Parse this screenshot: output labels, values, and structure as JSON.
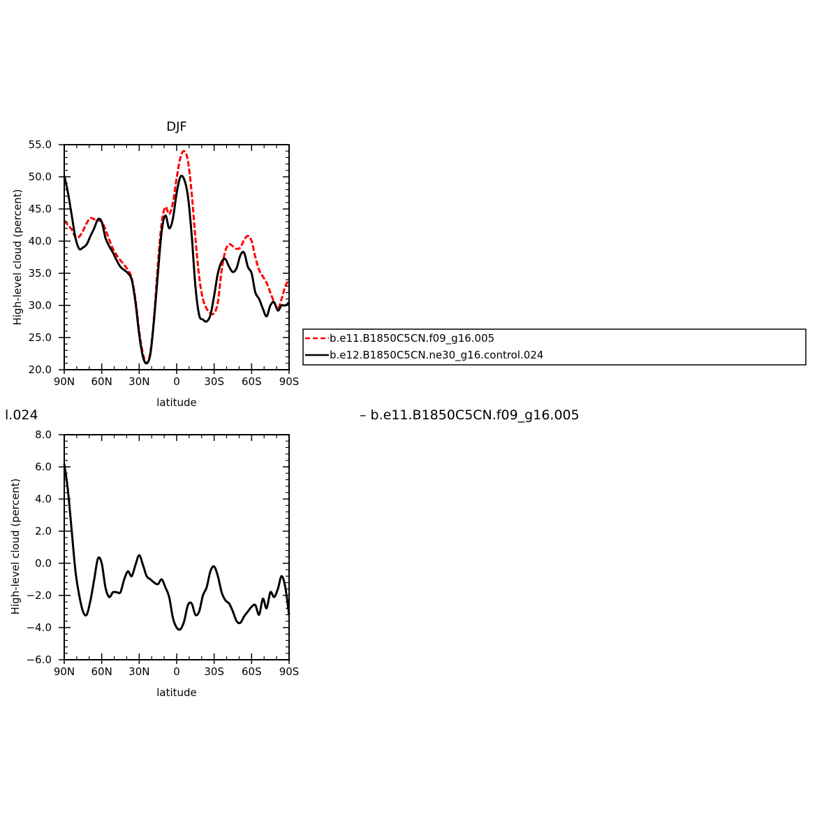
{
  "fragments": {
    "left_cut": "l.024",
    "diff_title_cut": "– b.e11.B1850C5CN.f09_g16.005"
  },
  "legend": {
    "items": [
      {
        "label": "b.e11.B1850C5CN.f09_g16.005",
        "color": "#ff0000",
        "dash": "dashed"
      },
      {
        "label": "b.e12.B1850C5CN.ne30_g16.control.024",
        "color": "#000000",
        "dash": "solid"
      }
    ]
  },
  "chart_data": [
    {
      "type": "line",
      "title": "DJF",
      "xlabel": "latitude",
      "ylabel": "High-level cloud (percent)",
      "xlim": [
        90,
        -90
      ],
      "ylim": [
        20.0,
        55.0
      ],
      "xticks": [
        90,
        60,
        30,
        0,
        -30,
        -60,
        -90
      ],
      "xtick_labels": [
        "90N",
        "60N",
        "30N",
        "0",
        "30S",
        "60S",
        "90S"
      ],
      "yticks": [
        20.0,
        25.0,
        30.0,
        35.0,
        40.0,
        45.0,
        50.0,
        55.0
      ],
      "ytick_labels": [
        "20.0",
        "25.0",
        "30.0",
        "35.0",
        "40.0",
        "45.0",
        "50.0",
        "55.0"
      ],
      "x": [
        90,
        87,
        84,
        81,
        78,
        75,
        72,
        69,
        66,
        63,
        60,
        57,
        54,
        51,
        48,
        45,
        42,
        39,
        36,
        33,
        30,
        27,
        24,
        21,
        18,
        15,
        12,
        9,
        6,
        3,
        0,
        -3,
        -6,
        -9,
        -12,
        -15,
        -18,
        -21,
        -24,
        -27,
        -30,
        -33,
        -36,
        -39,
        -42,
        -45,
        -48,
        -51,
        -54,
        -57,
        -60,
        -63,
        -66,
        -69,
        -72,
        -75,
        -78,
        -81,
        -84,
        -87,
        -90
      ],
      "series": [
        {
          "name": "b.e11.B1850C5CN.f09_g16.005",
          "color": "#ff0000",
          "dash": "dashed",
          "values": [
            43.2,
            42.5,
            41.8,
            40.6,
            40.7,
            41.6,
            42.8,
            43.6,
            43.4,
            43.2,
            43.0,
            41.8,
            40.2,
            38.8,
            37.8,
            37.0,
            36.3,
            35.5,
            34.3,
            31.0,
            26.0,
            22.5,
            21.0,
            22.8,
            28.5,
            36.5,
            42.8,
            45.3,
            44.2,
            46.0,
            49.8,
            53.0,
            54.0,
            52.5,
            47.5,
            40.5,
            34.5,
            31.0,
            29.5,
            28.8,
            28.8,
            30.5,
            35.5,
            38.5,
            39.5,
            39.2,
            38.8,
            39.0,
            40.2,
            40.8,
            40.0,
            37.5,
            35.5,
            34.5,
            33.5,
            32.0,
            30.5,
            29.5,
            31.0,
            33.0,
            34.0
          ]
        },
        {
          "name": "b.e12.B1850C5CN.ne30_g16.control.024",
          "color": "#000000",
          "dash": "solid",
          "values": [
            50.2,
            47.5,
            44.0,
            40.5,
            38.8,
            39.0,
            39.5,
            40.8,
            42.0,
            43.4,
            43.0,
            40.5,
            39.2,
            38.2,
            37.0,
            36.0,
            35.5,
            35.0,
            34.0,
            30.5,
            25.5,
            22.0,
            21.0,
            22.5,
            28.0,
            35.0,
            41.5,
            44.0,
            42.0,
            43.5,
            47.5,
            50.0,
            49.6,
            47.0,
            41.0,
            33.0,
            28.5,
            27.8,
            27.5,
            28.5,
            31.5,
            35.0,
            36.8,
            37.2,
            36.0,
            35.2,
            35.8,
            37.8,
            38.2,
            36.0,
            35.0,
            32.0,
            31.0,
            29.5,
            28.3,
            30.0,
            30.5,
            29.2,
            30.0,
            30.0,
            30.5
          ]
        }
      ]
    },
    {
      "type": "line",
      "title": "",
      "xlabel": "latitude",
      "ylabel": "High-level cloud (percent)",
      "xlim": [
        90,
        -90
      ],
      "ylim": [
        -6.0,
        8.0
      ],
      "xticks": [
        90,
        60,
        30,
        0,
        -30,
        -60,
        -90
      ],
      "xtick_labels": [
        "90N",
        "60N",
        "30N",
        "0",
        "30S",
        "60S",
        "90S"
      ],
      "yticks": [
        -6.0,
        -4.0,
        -2.0,
        0.0,
        2.0,
        4.0,
        6.0,
        8.0
      ],
      "ytick_labels": [
        "−6.0",
        "−4.0",
        "−2.0",
        "0.0",
        "2.0",
        "4.0",
        "6.0",
        "8.0"
      ],
      "x": [
        90,
        87,
        84,
        81,
        78,
        75,
        72,
        69,
        66,
        63,
        60,
        57,
        54,
        51,
        48,
        45,
        42,
        39,
        36,
        33,
        30,
        27,
        24,
        21,
        18,
        15,
        12,
        9,
        6,
        3,
        0,
        -3,
        -6,
        -9,
        -12,
        -15,
        -18,
        -21,
        -24,
        -27,
        -30,
        -33,
        -36,
        -39,
        -42,
        -45,
        -48,
        -51,
        -54,
        -57,
        -60,
        -63,
        -66,
        -69,
        -72,
        -75,
        -78,
        -81,
        -84,
        -87,
        -90
      ],
      "series": [
        {
          "name": "",
          "color": "#000000",
          "dash": "solid",
          "values": [
            6.2,
            4.5,
            2.0,
            -0.5,
            -2.0,
            -3.0,
            -3.2,
            -2.3,
            -1.0,
            0.3,
            0.0,
            -1.5,
            -2.1,
            -1.8,
            -1.8,
            -1.8,
            -1.0,
            -0.5,
            -0.8,
            -0.1,
            0.5,
            -0.1,
            -0.8,
            -1.0,
            -1.2,
            -1.3,
            -1.0,
            -1.5,
            -2.1,
            -3.4,
            -4.0,
            -4.1,
            -3.6,
            -2.6,
            -2.5,
            -3.2,
            -3.0,
            -2.0,
            -1.5,
            -0.5,
            -0.2,
            -0.8,
            -1.8,
            -2.3,
            -2.5,
            -3.0,
            -3.6,
            -3.7,
            -3.3,
            -3.0,
            -2.7,
            -2.6,
            -3.2,
            -2.2,
            -2.8,
            -1.8,
            -2.1,
            -1.6,
            -0.8,
            -1.5,
            -3.2
          ]
        }
      ]
    }
  ]
}
